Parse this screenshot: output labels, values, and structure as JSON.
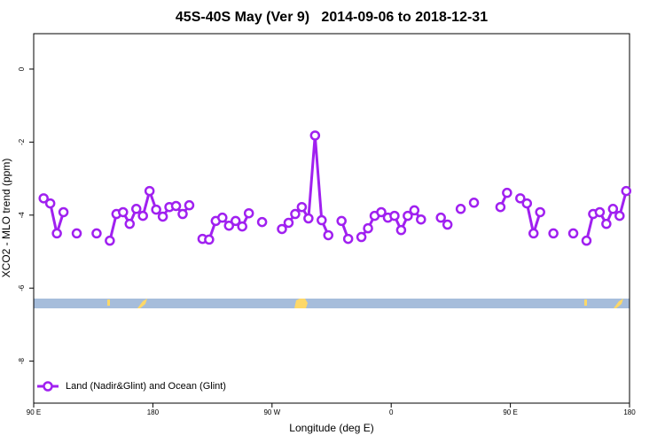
{
  "chart_data": {
    "type": "line",
    "title": "45S-40S May (Ver 9)   2014-09-06 to 2018-12-31",
    "xlabel": "Longitude (deg E)",
    "ylabel": "XCO2 - MLO trend (ppm)",
    "xlim": [
      90,
      540
    ],
    "ylim": [
      -9.15,
      0.97
    ],
    "xticks": [
      {
        "value": 90,
        "label": "90 E"
      },
      180,
      {
        "value": 270,
        "label": "90 W"
      },
      {
        "value": 360,
        "label": "0"
      },
      {
        "value": 450,
        "label": "90 E"
      },
      {
        "value": 540,
        "label": "180"
      }
    ],
    "yticks": [
      0,
      -2,
      -4,
      -6,
      -8
    ],
    "legend": "bottom-left",
    "x": [
      97.5,
      102.5,
      107.5,
      112.5,
      117.5,
      122.5,
      127.5,
      132.5,
      137.5,
      142.5,
      147.5,
      152.5,
      157.5,
      162.5,
      167.5,
      172.5,
      177.5,
      182.5,
      187.5,
      192.5,
      197.5,
      202.5,
      207.5,
      212.5,
      217.5,
      222.5,
      227.5,
      232.5,
      237.5,
      242.5,
      247.5,
      252.5,
      257.5,
      262.5,
      267.5,
      272.5,
      277.5,
      282.5,
      287.5,
      292.5,
      297.5,
      302.5,
      307.5,
      312.5,
      317.5,
      322.5,
      327.5,
      332.5,
      337.5,
      342.5,
      347.5,
      352.5,
      357.5,
      362.5,
      367.5,
      372.5,
      377.5,
      382.5,
      387.5,
      392.5,
      397.5,
      402.5,
      407.5,
      412.5,
      417.5,
      422.5,
      427.5,
      432.5,
      437.5,
      442.5,
      447.5,
      452.5,
      457.5,
      462.5,
      467.5,
      472.5,
      477.5,
      482.5,
      487.5,
      492.5,
      497.5,
      502.5,
      507.5,
      512.5,
      517.5,
      522.5,
      527.5,
      532.5,
      537.5
    ],
    "series": [
      {
        "name": "Land (Nadir&Glint) and Ocean (Glint)",
        "color": "#a020f0",
        "values": [
          -3.54,
          -3.68,
          -4.5,
          -3.92,
          null,
          -4.5,
          null,
          null,
          -4.5,
          null,
          -4.7,
          -3.97,
          -3.92,
          -4.24,
          -3.83,
          -4.02,
          -3.34,
          -3.85,
          -4.04,
          -3.78,
          -3.75,
          -3.97,
          -3.73,
          null,
          -4.65,
          -4.67,
          -4.16,
          -4.07,
          -4.29,
          -4.16,
          -4.31,
          -3.95,
          null,
          -4.19,
          null,
          null,
          -4.38,
          -4.21,
          -3.97,
          -3.78,
          -4.09,
          -1.82,
          -4.14,
          -4.55,
          null,
          -4.16,
          -4.65,
          null,
          -4.6,
          -4.36,
          -4.02,
          -3.92,
          -4.07,
          -4.02,
          -4.41,
          -4.02,
          -3.87,
          -4.12,
          null,
          null,
          -4.07,
          -4.26,
          null,
          -3.83,
          null,
          -3.66,
          null,
          null,
          null,
          -3.78,
          -3.39,
          null,
          -3.54,
          -3.68,
          -4.5,
          -3.92,
          null,
          -4.5,
          null,
          null,
          -4.5,
          null,
          -4.7,
          -3.97,
          -3.92,
          -4.24,
          -3.83,
          -4.02,
          -3.34
        ]
      }
    ]
  }
}
